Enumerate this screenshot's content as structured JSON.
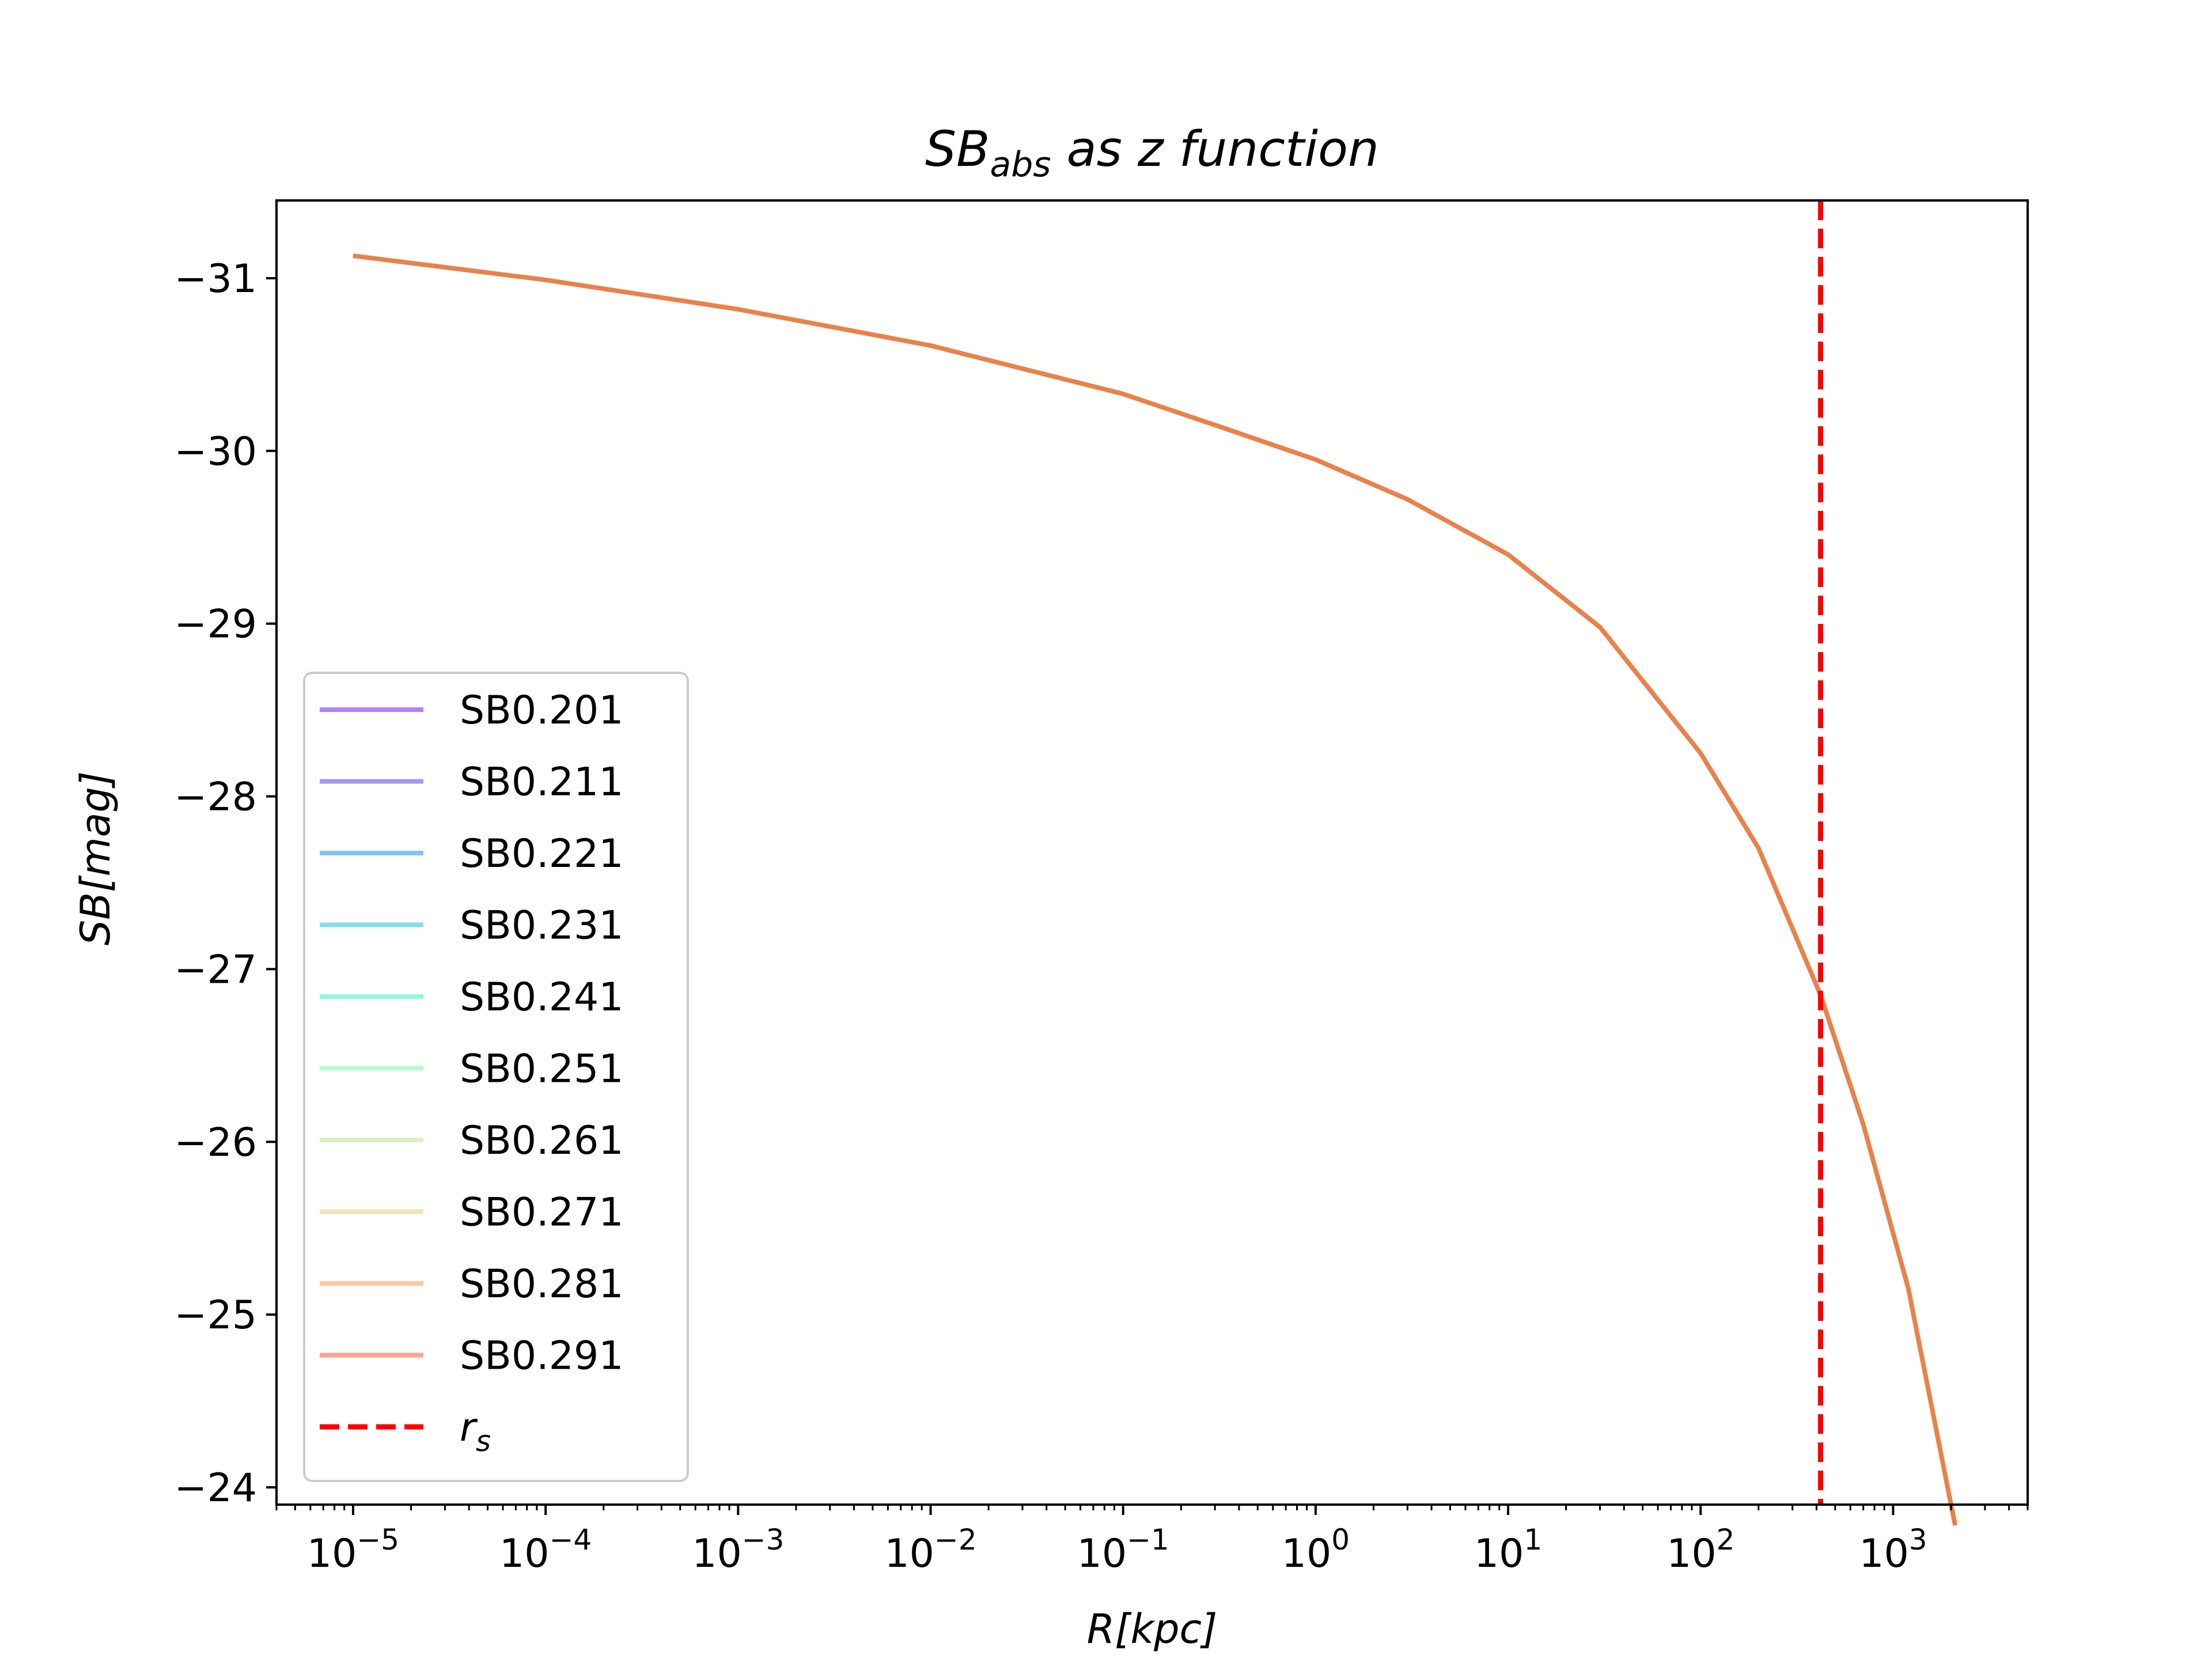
{
  "chart_data": {
    "type": "line",
    "title": "SB",
    "title_sub": "abs",
    "title_rest": " as z function",
    "xlabel": "R[kpc]",
    "ylabel": "SB[mag]",
    "x_scale": "log",
    "xlim": [
      4e-06,
      5000
    ],
    "ylim": [
      -31.45,
      -23.9
    ],
    "y_inverted": true,
    "x_ticks": [
      {
        "value": 1e-05,
        "base": "10",
        "exp": "−5"
      },
      {
        "value": 0.0001,
        "base": "10",
        "exp": "−4"
      },
      {
        "value": 0.001,
        "base": "10",
        "exp": "−3"
      },
      {
        "value": 0.01,
        "base": "10",
        "exp": "−2"
      },
      {
        "value": 0.1,
        "base": "10",
        "exp": "−1"
      },
      {
        "value": 1,
        "base": "10",
        "exp": "0"
      },
      {
        "value": 10,
        "base": "10",
        "exp": "1"
      },
      {
        "value": 100,
        "base": "10",
        "exp": "2"
      },
      {
        "value": 1000,
        "base": "10",
        "exp": "3"
      }
    ],
    "y_ticks": [
      {
        "value": -31,
        "label": "−31"
      },
      {
        "value": -30,
        "label": "−30"
      },
      {
        "value": -29,
        "label": "−29"
      },
      {
        "value": -28,
        "label": "−28"
      },
      {
        "value": -27,
        "label": "−27"
      },
      {
        "value": -26,
        "label": "−26"
      },
      {
        "value": -25,
        "label": "−25"
      },
      {
        "value": -24,
        "label": "−24"
      }
    ],
    "series": [
      {
        "name": "SB0.201",
        "color": "#b57ff8"
      },
      {
        "name": "SB0.211",
        "color": "#9d9cf4"
      },
      {
        "name": "SB0.221",
        "color": "#85c3f2"
      },
      {
        "name": "SB0.231",
        "color": "#81dfe9"
      },
      {
        "name": "SB0.241",
        "color": "#93f6df"
      },
      {
        "name": "SB0.251",
        "color": "#b7fbcd"
      },
      {
        "name": "SB0.261",
        "color": "#d8f1c0"
      },
      {
        "name": "SB0.271",
        "color": "#f0e2b4"
      },
      {
        "name": "SB0.281",
        "color": "#fec6a1"
      },
      {
        "name": "SB0.291",
        "color": "#fba38f"
      }
    ],
    "curve": {
      "color": "#e8824a",
      "points": [
        [
          1e-05,
          -31.13
        ],
        [
          0.0001,
          -30.99
        ],
        [
          0.001,
          -30.82
        ],
        [
          0.01,
          -30.61
        ],
        [
          0.1,
          -30.33
        ],
        [
          0.3,
          -30.15
        ],
        [
          1,
          -29.95
        ],
        [
          3,
          -29.72
        ],
        [
          10,
          -29.4
        ],
        [
          30,
          -28.98
        ],
        [
          100,
          -28.25
        ],
        [
          200,
          -27.7
        ],
        [
          420,
          -26.85
        ],
        [
          700,
          -26.1
        ],
        [
          1200,
          -25.15
        ],
        [
          2100,
          -23.78
        ]
      ]
    },
    "rs": {
      "name": "r",
      "sub": "s",
      "x": 420,
      "color": "#ff0000",
      "style": "dashed"
    },
    "legend_position": "lower-left"
  }
}
